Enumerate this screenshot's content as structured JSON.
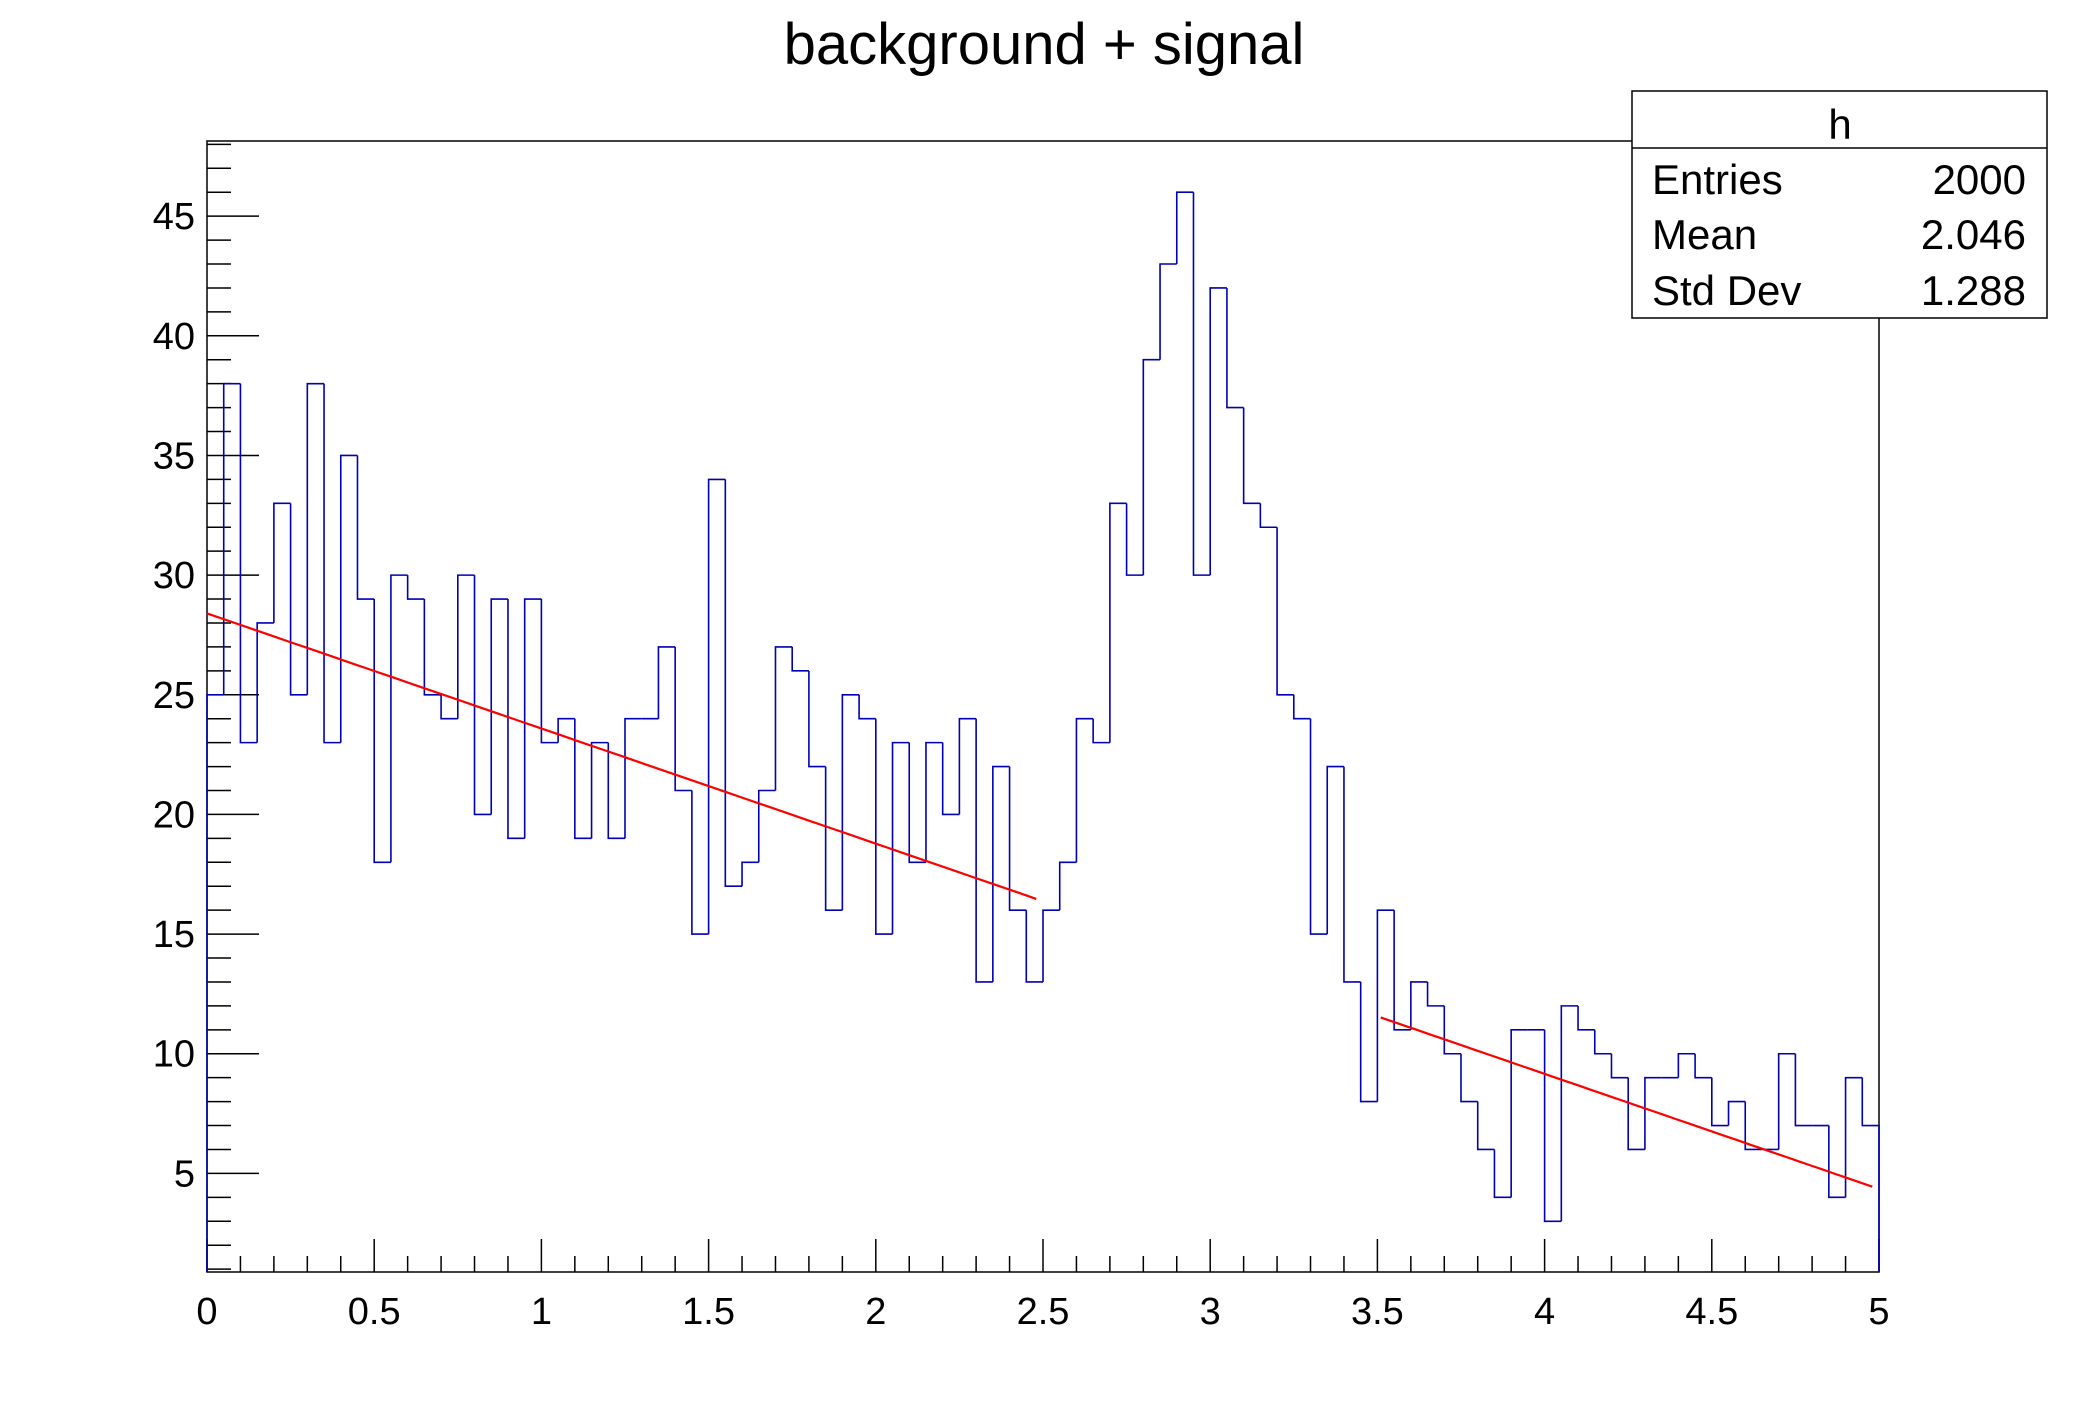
{
  "chart_data": {
    "type": "bar",
    "histogram": true,
    "title": "background + signal",
    "xlabel": "",
    "ylabel": "",
    "xlim": [
      0,
      5
    ],
    "ylim": [
      0.88,
      48.14
    ],
    "bin_width": 0.05,
    "x_ticks": [
      "0",
      "0.5",
      "1",
      "1.5",
      "2",
      "2.5",
      "3",
      "3.5",
      "4",
      "4.5",
      "5"
    ],
    "x_tick_values": [
      0,
      0.5,
      1,
      1.5,
      2,
      2.5,
      3,
      3.5,
      4,
      4.5,
      5
    ],
    "y_ticks": [
      "5",
      "10",
      "15",
      "20",
      "25",
      "30",
      "35",
      "40",
      "45"
    ],
    "y_tick_values": [
      5,
      10,
      15,
      20,
      25,
      30,
      35,
      40,
      45
    ],
    "grid": false,
    "series": [
      {
        "name": "h",
        "color": "#0000b4",
        "values": [
          25,
          38,
          23,
          28,
          33,
          25,
          38,
          23,
          35,
          29,
          18,
          30,
          29,
          25,
          24,
          30,
          20,
          29,
          19,
          29,
          23,
          24,
          19,
          23,
          19,
          24,
          24,
          27,
          21,
          15,
          34,
          17,
          18,
          21,
          27,
          26,
          22,
          16,
          25,
          24,
          15,
          23,
          18,
          23,
          20,
          24,
          13,
          22,
          16,
          13,
          16,
          18,
          24,
          23,
          33,
          30,
          39,
          43,
          46,
          30,
          42,
          37,
          33,
          32,
          25,
          24,
          15,
          22,
          13,
          8,
          16,
          11,
          13,
          12,
          10,
          8,
          6,
          4,
          11,
          11,
          3,
          12,
          11,
          10,
          9,
          6,
          9,
          9,
          10,
          9,
          7,
          8,
          6,
          6,
          10,
          7,
          7,
          4,
          9,
          7
        ]
      }
    ],
    "fit": {
      "color": "#ff0000",
      "function": "linear",
      "intercept": 28.4,
      "slope": -4.81,
      "ranges": [
        [
          0,
          2.48
        ],
        [
          3.51,
          4.98
        ]
      ]
    },
    "stats_box": {
      "name": "h",
      "placement": "top-right",
      "rows": [
        {
          "label": "Entries",
          "value": "2000"
        },
        {
          "label": "Mean",
          "value": "2.046"
        },
        {
          "label": "Std Dev",
          "value": "1.288"
        }
      ]
    }
  }
}
